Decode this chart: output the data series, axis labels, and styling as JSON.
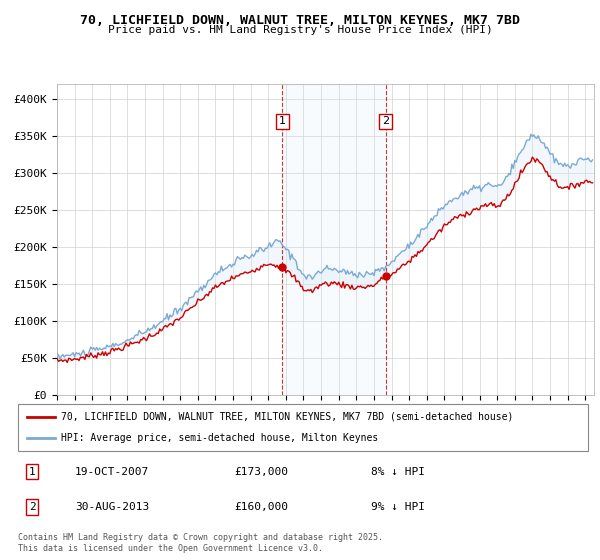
{
  "title": "70, LICHFIELD DOWN, WALNUT TREE, MILTON KEYNES, MK7 7BD",
  "subtitle": "Price paid vs. HM Land Registry's House Price Index (HPI)",
  "ylim": [
    0,
    420000
  ],
  "yticks": [
    0,
    50000,
    100000,
    150000,
    200000,
    250000,
    300000,
    350000,
    400000
  ],
  "ytick_labels": [
    "£0",
    "£50K",
    "£100K",
    "£150K",
    "£200K",
    "£250K",
    "£300K",
    "£350K",
    "£400K"
  ],
  "background_color": "#ffffff",
  "grid_color": "#d0d0d0",
  "hpi_color": "#7aaad4",
  "price_color": "#cc0000",
  "fill_color": "#d8eaf7",
  "sale1_x": 2007.8,
  "sale1_y": 173000,
  "sale2_x": 2013.67,
  "sale2_y": 160000,
  "legend_price_label": "70, LICHFIELD DOWN, WALNUT TREE, MILTON KEYNES, MK7 7BD (semi-detached house)",
  "legend_hpi_label": "HPI: Average price, semi-detached house, Milton Keynes",
  "note1_date": "19-OCT-2007",
  "note1_price": "£173,000",
  "note1_hpi": "8% ↓ HPI",
  "note2_date": "30-AUG-2013",
  "note2_price": "£160,000",
  "note2_hpi": "9% ↓ HPI",
  "footer": "Contains HM Land Registry data © Crown copyright and database right 2025.\nThis data is licensed under the Open Government Licence v3.0.",
  "xmin": 1995,
  "xmax": 2025.5
}
